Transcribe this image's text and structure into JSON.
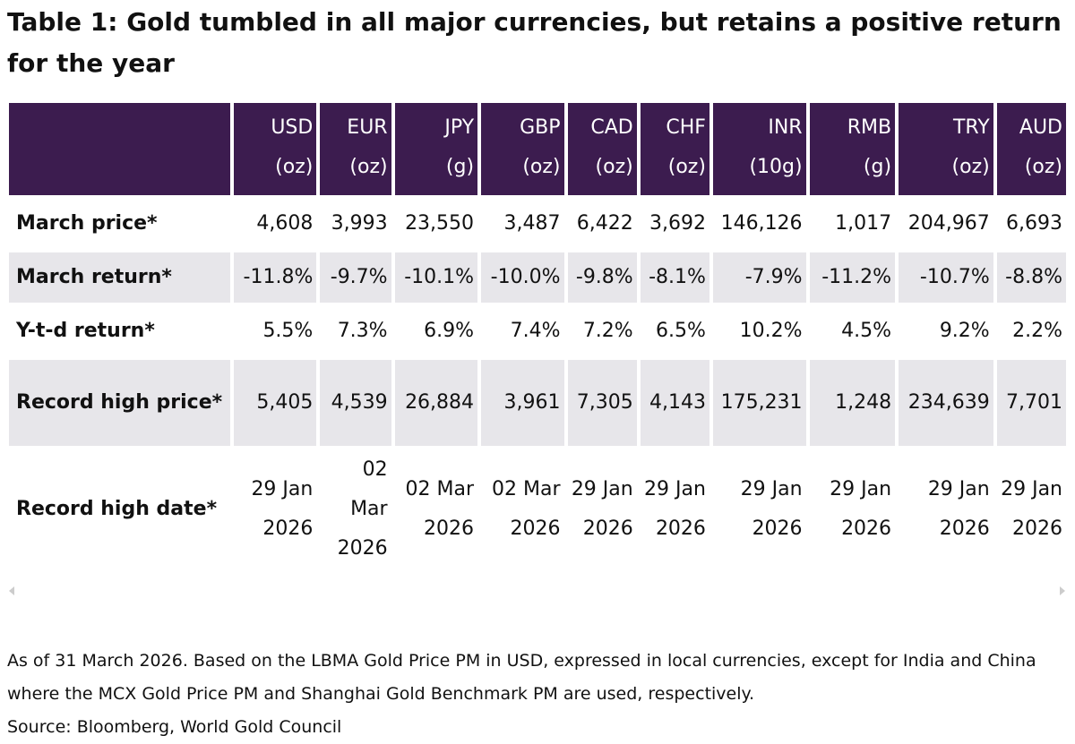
{
  "title": "Table 1: Gold tumbled in all major currencies, but retains a positive return for the year",
  "table": {
    "columns": [
      {
        "currency": "USD",
        "unit": "(oz)"
      },
      {
        "currency": "EUR",
        "unit": "(oz)"
      },
      {
        "currency": "JPY",
        "unit": "(g)"
      },
      {
        "currency": "GBP",
        "unit": "(oz)"
      },
      {
        "currency": "CAD",
        "unit": "(oz)"
      },
      {
        "currency": "CHF",
        "unit": "(oz)"
      },
      {
        "currency": "INR",
        "unit": "(10g)"
      },
      {
        "currency": "RMB",
        "unit": "(g)"
      },
      {
        "currency": "TRY",
        "unit": "(oz)"
      },
      {
        "currency": "AUD",
        "unit": "(oz)"
      }
    ],
    "rows": [
      {
        "label": "March price*",
        "cells": [
          "4,608",
          "3,993",
          "23,550",
          "3,487",
          "6,422",
          "3,692",
          "146,126",
          "1,017",
          "204,967",
          "6,693"
        ]
      },
      {
        "label": "March return*",
        "cells": [
          "-11.8%",
          "-9.7%",
          "-10.1%",
          "-10.0%",
          "-9.8%",
          "-8.1%",
          "-7.9%",
          "-11.2%",
          "-10.7%",
          "-8.8%"
        ]
      },
      {
        "label": "Y-t-d return*",
        "cells": [
          "5.5%",
          "7.3%",
          "6.9%",
          "7.4%",
          "7.2%",
          "6.5%",
          "10.2%",
          "4.5%",
          "9.2%",
          "2.2%"
        ]
      },
      {
        "label": "Record high price*",
        "cells": [
          "5,405",
          "4,539",
          "26,884",
          "3,961",
          "7,305",
          "4,143",
          "175,231",
          "1,248",
          "234,639",
          "7,701"
        ]
      },
      {
        "label": "Record high date*",
        "cells": [
          "29 Jan 2026",
          "02 Mar 2026",
          "02 Mar 2026",
          "02 Mar 2026",
          "29 Jan 2026",
          "29 Jan 2026",
          "29 Jan 2026",
          "29 Jan 2026",
          "29 Jan 2026",
          "29 Jan 2026"
        ]
      }
    ]
  },
  "notes": [
    "As of 31 March 2026. Based on the LBMA Gold Price PM in USD, expressed in local currencies, except for India and China where the MCX Gold Price PM and Shanghai Gold Benchmark PM are used, respectively.",
    "Source: Bloomberg, World Gold Council"
  ]
}
